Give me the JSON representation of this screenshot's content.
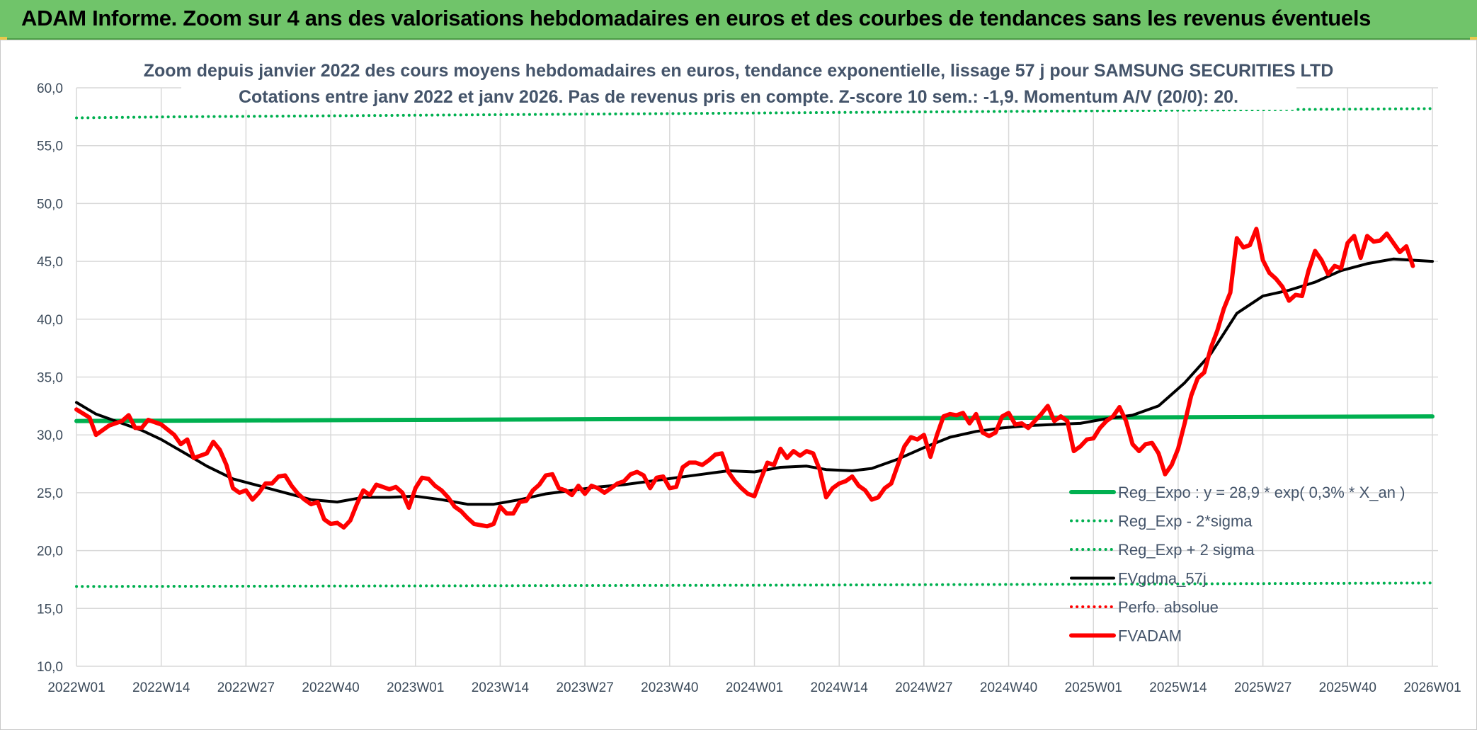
{
  "header": {
    "title": "ADAM Informe. Zoom sur 4 ans des valorisations hebdomadaires en euros et des courbes de tendances sans les revenus éventuels"
  },
  "chart_data": {
    "type": "line",
    "title": "Zoom depuis janvier 2022 des cours moyens hebdomadaires en euros, tendance exponentielle, lissage 57 j pour SAMSUNG SECURITIES LTD",
    "subtitle": "Cotations entre janv 2022 et janv 2026. Pas de revenus pris en compte. Z-score 10 sem.: -1,9. Momentum A/V (20/0): 20.",
    "xlabel": "",
    "ylabel": "",
    "ylim": [
      10,
      60
    ],
    "yticks": [
      "10,0",
      "15,0",
      "20,0",
      "25,0",
      "30,0",
      "35,0",
      "40,0",
      "45,0",
      "50,0",
      "55,0",
      "60,0"
    ],
    "xticks": [
      "2022W01",
      "2022W14",
      "2022W27",
      "2022W40",
      "2023W01",
      "2023W14",
      "2023W27",
      "2023W40",
      "2024W01",
      "2024W14",
      "2024W27",
      "2024W40",
      "2025W01",
      "2025W14",
      "2025W27",
      "2025W40",
      "2026W01"
    ],
    "x_range_weeks": [
      0,
      208
    ],
    "grid": true,
    "legend_position": "bottom-right",
    "series": [
      {
        "name": "Reg_Expo : y = 28,9 * exp( 0,3% *  X_an )",
        "color": "#00b050",
        "style": "solid",
        "points": [
          [
            0,
            31.2
          ],
          [
            52,
            31.3
          ],
          [
            104,
            31.4
          ],
          [
            156,
            31.5
          ],
          [
            208,
            31.6
          ]
        ]
      },
      {
        "name": "Reg_Exp - 2*sigma",
        "color": "#00b050",
        "style": "dotted",
        "points": [
          [
            0,
            16.9
          ],
          [
            104,
            17.0
          ],
          [
            208,
            17.2
          ]
        ]
      },
      {
        "name": "Reg_Exp + 2 sigma",
        "color": "#00b050",
        "style": "dotted",
        "points": [
          [
            0,
            57.4
          ],
          [
            16,
            57.5
          ],
          [
            208,
            58.2
          ]
        ]
      },
      {
        "name": "FVgdma_57j",
        "color": "#000000",
        "style": "solid",
        "points": [
          [
            0,
            32.8
          ],
          [
            3,
            31.8
          ],
          [
            6,
            31.2
          ],
          [
            10,
            30.4
          ],
          [
            13,
            29.6
          ],
          [
            17,
            28.3
          ],
          [
            20,
            27.3
          ],
          [
            24,
            26.2
          ],
          [
            28,
            25.6
          ],
          [
            32,
            25.0
          ],
          [
            36,
            24.4
          ],
          [
            40,
            24.2
          ],
          [
            44,
            24.6
          ],
          [
            48,
            24.6
          ],
          [
            52,
            24.7
          ],
          [
            56,
            24.4
          ],
          [
            60,
            24.0
          ],
          [
            64,
            24.0
          ],
          [
            68,
            24.4
          ],
          [
            72,
            24.9
          ],
          [
            76,
            25.2
          ],
          [
            80,
            25.5
          ],
          [
            84,
            25.7
          ],
          [
            88,
            26.0
          ],
          [
            92,
            26.3
          ],
          [
            96,
            26.6
          ],
          [
            100,
            26.9
          ],
          [
            104,
            26.8
          ],
          [
            108,
            27.2
          ],
          [
            112,
            27.3
          ],
          [
            115,
            27.0
          ],
          [
            119,
            26.9
          ],
          [
            122,
            27.1
          ],
          [
            126,
            27.9
          ],
          [
            130,
            28.9
          ],
          [
            134,
            29.8
          ],
          [
            138,
            30.3
          ],
          [
            142,
            30.6
          ],
          [
            146,
            30.8
          ],
          [
            150,
            30.9
          ],
          [
            154,
            31.0
          ],
          [
            158,
            31.4
          ],
          [
            162,
            31.7
          ],
          [
            166,
            32.5
          ],
          [
            170,
            34.5
          ],
          [
            174,
            37.0
          ],
          [
            178,
            40.5
          ],
          [
            182,
            42.0
          ],
          [
            186,
            42.5
          ],
          [
            190,
            43.2
          ],
          [
            194,
            44.2
          ],
          [
            198,
            44.8
          ],
          [
            202,
            45.2
          ],
          [
            205,
            45.1
          ],
          [
            208,
            45.0
          ]
        ]
      },
      {
        "name": "Perfo. absolue",
        "color": "#ff0000",
        "style": "dotted",
        "points": []
      },
      {
        "name": "FVADAM",
        "color": "#ff0000",
        "style": "solid",
        "points": [
          [
            0,
            32.2
          ],
          [
            2,
            31.5
          ],
          [
            3,
            30.0
          ],
          [
            5,
            30.8
          ],
          [
            7,
            31.2
          ],
          [
            8,
            31.7
          ],
          [
            9,
            30.6
          ],
          [
            10,
            30.6
          ],
          [
            11,
            31.3
          ],
          [
            13,
            30.9
          ],
          [
            15,
            30.0
          ],
          [
            16,
            29.2
          ],
          [
            17,
            29.6
          ],
          [
            18,
            28.0
          ],
          [
            20,
            28.4
          ],
          [
            21,
            29.4
          ],
          [
            22,
            28.7
          ],
          [
            23,
            27.4
          ],
          [
            24,
            25.4
          ],
          [
            25,
            25.0
          ],
          [
            26,
            25.2
          ],
          [
            27,
            24.4
          ],
          [
            28,
            25.0
          ],
          [
            29,
            25.8
          ],
          [
            30,
            25.8
          ],
          [
            31,
            26.4
          ],
          [
            32,
            26.5
          ],
          [
            33,
            25.6
          ],
          [
            34,
            24.9
          ],
          [
            35,
            24.4
          ],
          [
            36,
            24.0
          ],
          [
            37,
            24.2
          ],
          [
            38,
            22.7
          ],
          [
            39,
            22.3
          ],
          [
            40,
            22.4
          ],
          [
            41,
            22.0
          ],
          [
            42,
            22.6
          ],
          [
            43,
            24.0
          ],
          [
            44,
            25.2
          ],
          [
            45,
            24.8
          ],
          [
            46,
            25.7
          ],
          [
            47,
            25.5
          ],
          [
            48,
            25.3
          ],
          [
            49,
            25.5
          ],
          [
            50,
            25.0
          ],
          [
            51,
            23.7
          ],
          [
            52,
            25.4
          ],
          [
            53,
            26.3
          ],
          [
            54,
            26.2
          ],
          [
            55,
            25.6
          ],
          [
            56,
            25.2
          ],
          [
            57,
            24.6
          ],
          [
            58,
            23.8
          ],
          [
            59,
            23.4
          ],
          [
            60,
            22.8
          ],
          [
            61,
            22.3
          ],
          [
            62,
            22.2
          ],
          [
            63,
            22.1
          ],
          [
            64,
            22.3
          ],
          [
            65,
            23.8
          ],
          [
            66,
            23.2
          ],
          [
            67,
            23.2
          ],
          [
            68,
            24.2
          ],
          [
            69,
            24.3
          ],
          [
            70,
            25.2
          ],
          [
            71,
            25.7
          ],
          [
            72,
            26.5
          ],
          [
            73,
            26.6
          ],
          [
            74,
            25.4
          ],
          [
            75,
            25.2
          ],
          [
            76,
            24.8
          ],
          [
            77,
            25.6
          ],
          [
            78,
            24.9
          ],
          [
            79,
            25.6
          ],
          [
            80,
            25.4
          ],
          [
            81,
            25.0
          ],
          [
            82,
            25.4
          ],
          [
            83,
            25.8
          ],
          [
            84,
            26.0
          ],
          [
            85,
            26.6
          ],
          [
            86,
            26.8
          ],
          [
            87,
            26.5
          ],
          [
            88,
            25.4
          ],
          [
            89,
            26.3
          ],
          [
            90,
            26.4
          ],
          [
            91,
            25.4
          ],
          [
            92,
            25.5
          ],
          [
            93,
            27.2
          ],
          [
            94,
            27.6
          ],
          [
            95,
            27.6
          ],
          [
            96,
            27.4
          ],
          [
            97,
            27.8
          ],
          [
            98,
            28.3
          ],
          [
            99,
            28.4
          ],
          [
            100,
            26.8
          ],
          [
            101,
            26.0
          ],
          [
            102,
            25.4
          ],
          [
            103,
            24.9
          ],
          [
            104,
            24.7
          ],
          [
            105,
            26.2
          ],
          [
            106,
            27.6
          ],
          [
            107,
            27.4
          ],
          [
            108,
            28.8
          ],
          [
            109,
            28.0
          ],
          [
            110,
            28.6
          ],
          [
            111,
            28.2
          ],
          [
            112,
            28.6
          ],
          [
            113,
            28.4
          ],
          [
            114,
            27.0
          ],
          [
            115,
            24.6
          ],
          [
            116,
            25.4
          ],
          [
            117,
            25.8
          ],
          [
            118,
            26.0
          ],
          [
            119,
            26.4
          ],
          [
            120,
            25.6
          ],
          [
            121,
            25.2
          ],
          [
            122,
            24.4
          ],
          [
            123,
            24.6
          ],
          [
            124,
            25.4
          ],
          [
            125,
            25.8
          ],
          [
            126,
            27.4
          ],
          [
            127,
            29.0
          ],
          [
            128,
            29.8
          ],
          [
            129,
            29.6
          ],
          [
            130,
            30.0
          ],
          [
            131,
            28.1
          ],
          [
            132,
            30.0
          ],
          [
            133,
            31.6
          ],
          [
            134,
            31.8
          ],
          [
            135,
            31.7
          ],
          [
            136,
            31.9
          ],
          [
            137,
            31.0
          ],
          [
            138,
            31.8
          ],
          [
            139,
            30.2
          ],
          [
            140,
            29.9
          ],
          [
            141,
            30.2
          ],
          [
            142,
            31.6
          ],
          [
            143,
            31.9
          ],
          [
            144,
            30.9
          ],
          [
            145,
            31.0
          ],
          [
            146,
            30.6
          ],
          [
            147,
            31.2
          ],
          [
            148,
            31.8
          ],
          [
            149,
            32.5
          ],
          [
            150,
            31.2
          ],
          [
            151,
            31.6
          ],
          [
            152,
            31.2
          ],
          [
            153,
            28.6
          ],
          [
            154,
            29.0
          ],
          [
            155,
            29.6
          ],
          [
            156,
            29.7
          ],
          [
            157,
            30.6
          ],
          [
            158,
            31.2
          ],
          [
            159,
            31.6
          ],
          [
            160,
            32.4
          ],
          [
            161,
            31.2
          ],
          [
            162,
            29.2
          ],
          [
            163,
            28.6
          ],
          [
            164,
            29.2
          ],
          [
            165,
            29.3
          ],
          [
            166,
            28.4
          ],
          [
            167,
            26.6
          ],
          [
            168,
            27.4
          ],
          [
            169,
            28.8
          ],
          [
            170,
            31.0
          ],
          [
            171,
            33.4
          ],
          [
            172,
            34.9
          ],
          [
            173,
            35.4
          ],
          [
            174,
            37.5
          ],
          [
            175,
            39.0
          ],
          [
            176,
            40.9
          ],
          [
            177,
            42.3
          ],
          [
            178,
            47.0
          ],
          [
            179,
            46.2
          ],
          [
            180,
            46.4
          ],
          [
            181,
            47.8
          ],
          [
            182,
            45.1
          ],
          [
            183,
            44.0
          ],
          [
            184,
            43.5
          ],
          [
            185,
            42.8
          ],
          [
            186,
            41.6
          ],
          [
            187,
            42.1
          ],
          [
            188,
            42.0
          ],
          [
            189,
            44.2
          ],
          [
            190,
            45.9
          ],
          [
            191,
            45.1
          ],
          [
            192,
            43.9
          ],
          [
            193,
            44.6
          ],
          [
            194,
            44.4
          ],
          [
            195,
            46.6
          ],
          [
            196,
            47.2
          ],
          [
            197,
            45.3
          ],
          [
            198,
            47.2
          ],
          [
            199,
            46.7
          ],
          [
            200,
            46.8
          ],
          [
            201,
            47.4
          ],
          [
            202,
            46.6
          ],
          [
            203,
            45.8
          ],
          [
            204,
            46.3
          ],
          [
            205,
            44.6
          ]
        ]
      }
    ]
  }
}
